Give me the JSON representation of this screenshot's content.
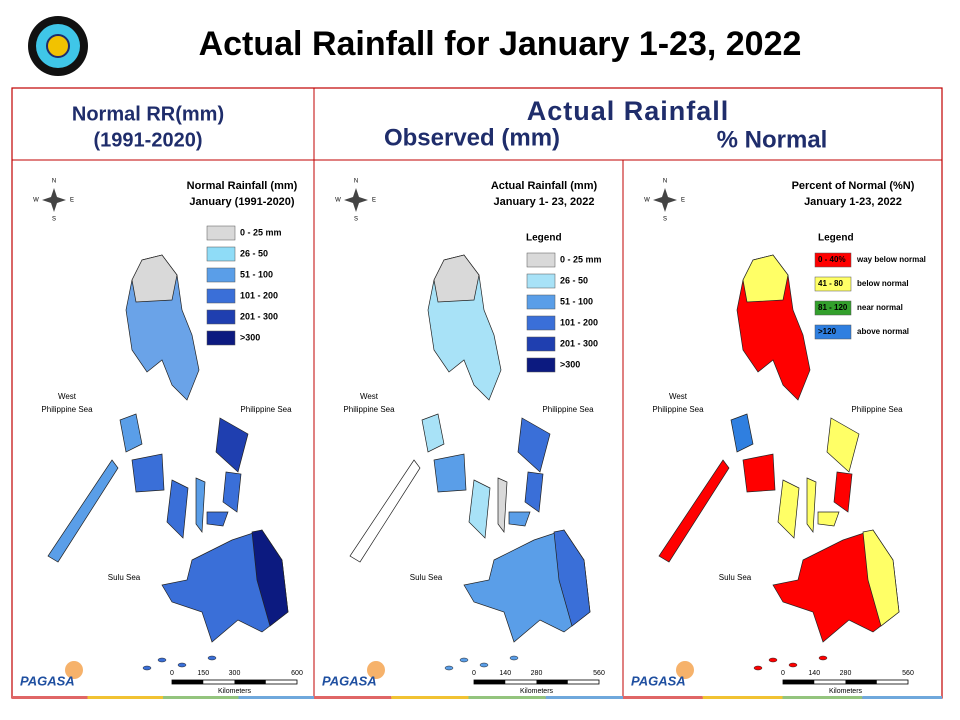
{
  "header": {
    "title": "Actual Rainfall for January 1-23, 2022"
  },
  "columns": {
    "normal": [
      "Normal RR(mm)",
      "(1991-2020)"
    ],
    "actual": "Actual Rainfall",
    "observed": "Observed (mm)",
    "percent": "% Normal"
  },
  "compass": [
    "N",
    "E",
    "S",
    "W"
  ],
  "maps": [
    {
      "title": [
        "Normal Rainfall (mm)",
        "January (1991-2020)"
      ],
      "legend": [
        {
          "label": "0 - 25 mm",
          "color": "#d9d9d9"
        },
        {
          "label": "26 - 50",
          "color": "#8fdcf7"
        },
        {
          "label": "51 - 100",
          "color": "#5a9ee8"
        },
        {
          "label": "101 - 200",
          "color": "#3a6fd8"
        },
        {
          "label": "201 - 300",
          "color": "#1f3fb0"
        },
        {
          "label": ">300",
          "color": "#0c1a80"
        }
      ],
      "seas": {
        "west": [
          "West",
          "Philippine Sea"
        ],
        "east": "Philippine Sea",
        "south": "Sulu Sea"
      },
      "scale": [
        0,
        150,
        300,
        600
      ],
      "scale_unit": "Kilometers",
      "logo": "PAGASA"
    },
    {
      "title": [
        "Actual Rainfall (mm)",
        "January 1- 23, 2022"
      ],
      "legend_title": "Legend",
      "legend": [
        {
          "label": "0 - 25 mm",
          "color": "#d9d9d9"
        },
        {
          "label": "26 - 50",
          "color": "#a8e2f7"
        },
        {
          "label": "51 - 100",
          "color": "#5a9ee8"
        },
        {
          "label": "101 - 200",
          "color": "#3a6fd8"
        },
        {
          "label": "201 - 300",
          "color": "#1f3fb0"
        },
        {
          "label": ">300",
          "color": "#0c1a80"
        }
      ],
      "seas": {
        "west": [
          "West",
          "Philippine Sea"
        ],
        "east": "Philippine Sea",
        "south": "Sulu Sea"
      },
      "scale": [
        0,
        140,
        280,
        560
      ],
      "scale_unit": "Kilometers",
      "logo": "PAGASA"
    },
    {
      "title": [
        "Percent of Normal (%N)",
        "January 1-23, 2022"
      ],
      "legend_title": "Legend",
      "legend": [
        {
          "label": "0 - 40%",
          "note": "way below normal",
          "color": "#ff0000"
        },
        {
          "label": "41 - 80",
          "note": "below normal",
          "color": "#ffff66"
        },
        {
          "label": "81 - 120",
          "note": "near normal",
          "color": "#33a02c"
        },
        {
          "label": ">120",
          "note": "above normal",
          "color": "#2f7fe0"
        }
      ],
      "seas": {
        "west": [
          "West",
          "Philippine Sea"
        ],
        "east": "Philippine Sea",
        "south": "Sulu Sea"
      },
      "scale": [
        0,
        140,
        280,
        560
      ],
      "scale_unit": "Kilometers",
      "logo": "PAGASA"
    }
  ]
}
